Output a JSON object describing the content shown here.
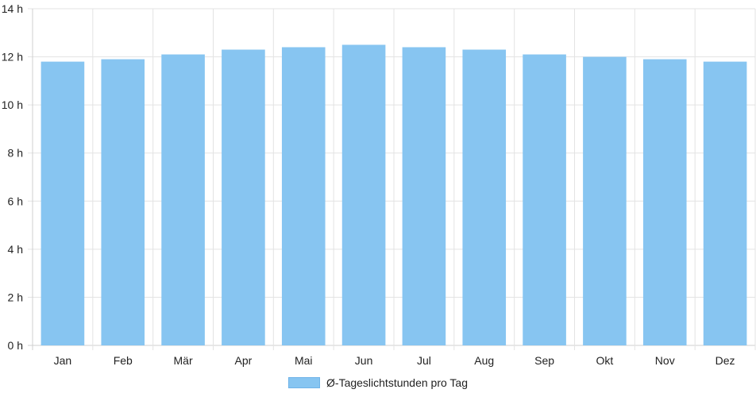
{
  "chart_data": {
    "type": "bar",
    "categories": [
      "Jan",
      "Feb",
      "Mär",
      "Apr",
      "Mai",
      "Jun",
      "Jul",
      "Aug",
      "Sep",
      "Okt",
      "Nov",
      "Dez"
    ],
    "series": [
      {
        "name": "Ø-Tageslichtstunden pro Tag",
        "values": [
          11.8,
          11.9,
          12.1,
          12.3,
          12.4,
          12.5,
          12.4,
          12.3,
          12.1,
          12.0,
          11.9,
          11.8
        ],
        "color": "#87c5f1"
      }
    ],
    "yticks": [
      "0 h",
      "2 h",
      "4 h",
      "6 h",
      "8 h",
      "10 h",
      "12 h",
      "14 h"
    ],
    "ylim": [
      0,
      14
    ],
    "grid": true,
    "legend_position": "bottom"
  }
}
